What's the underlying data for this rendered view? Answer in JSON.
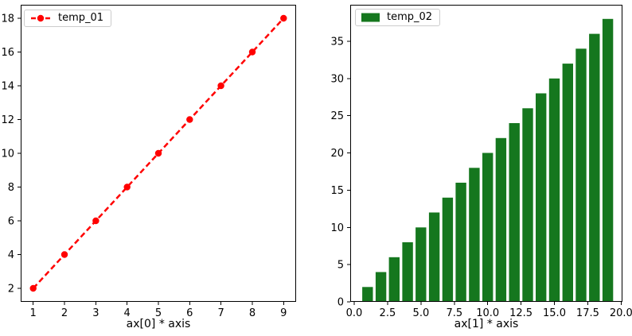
{
  "figure": {
    "background": "#ffffff",
    "text_color": "#000000",
    "spine_color": "#000000"
  },
  "chart_data": [
    {
      "type": "line",
      "title": "",
      "xlabel": "ax[0] * axis",
      "ylabel": "",
      "x": [
        1,
        2,
        3,
        4,
        5,
        6,
        7,
        8,
        9
      ],
      "y": [
        2,
        4,
        6,
        8,
        10,
        12,
        14,
        16,
        18
      ],
      "xlim": [
        0.6,
        9.4
      ],
      "ylim": [
        1.2,
        18.8
      ],
      "xticks": [
        1,
        2,
        3,
        4,
        5,
        6,
        7,
        8,
        9
      ],
      "xtick_labels": [
        "1",
        "2",
        "3",
        "4",
        "5",
        "6",
        "7",
        "8",
        "9"
      ],
      "yticks": [
        2,
        4,
        6,
        8,
        10,
        12,
        14,
        16,
        18
      ],
      "ytick_labels": [
        "2",
        "4",
        "6",
        "8",
        "10",
        "12",
        "14",
        "16",
        "18"
      ],
      "line_color": "#ff0000",
      "line_style": "dashed",
      "marker": "circle",
      "grid": false,
      "legend": {
        "label": "temp_01",
        "position": "upper-left",
        "key": "dashed-line-with-marker"
      }
    },
    {
      "type": "bar",
      "title": "",
      "xlabel": "ax[1] * axis",
      "ylabel": "",
      "x": [
        1,
        2,
        3,
        4,
        5,
        6,
        7,
        8,
        9,
        10,
        11,
        12,
        13,
        14,
        15,
        16,
        17,
        18,
        19
      ],
      "y": [
        2,
        4,
        6,
        8,
        10,
        12,
        14,
        16,
        18,
        20,
        22,
        24,
        26,
        28,
        30,
        32,
        34,
        36,
        38
      ],
      "bar_width": 0.8,
      "xlim": [
        -0.3,
        20.1
      ],
      "ylim": [
        0,
        39.9
      ],
      "xticks": [
        0,
        2.5,
        5,
        7.5,
        10,
        12.5,
        15,
        17.5,
        20
      ],
      "xtick_labels": [
        "0.0",
        "2.5",
        "5.0",
        "7.5",
        "10.0",
        "12.5",
        "15.0",
        "17.5",
        "20.0"
      ],
      "yticks": [
        0,
        5,
        10,
        15,
        20,
        25,
        30,
        35
      ],
      "ytick_labels": [
        "0",
        "5",
        "10",
        "15",
        "20",
        "25",
        "30",
        "35"
      ],
      "bar_color": "#15771e",
      "grid": false,
      "legend": {
        "label": "temp_02",
        "position": "upper-left",
        "key": "filled-patch"
      }
    }
  ]
}
